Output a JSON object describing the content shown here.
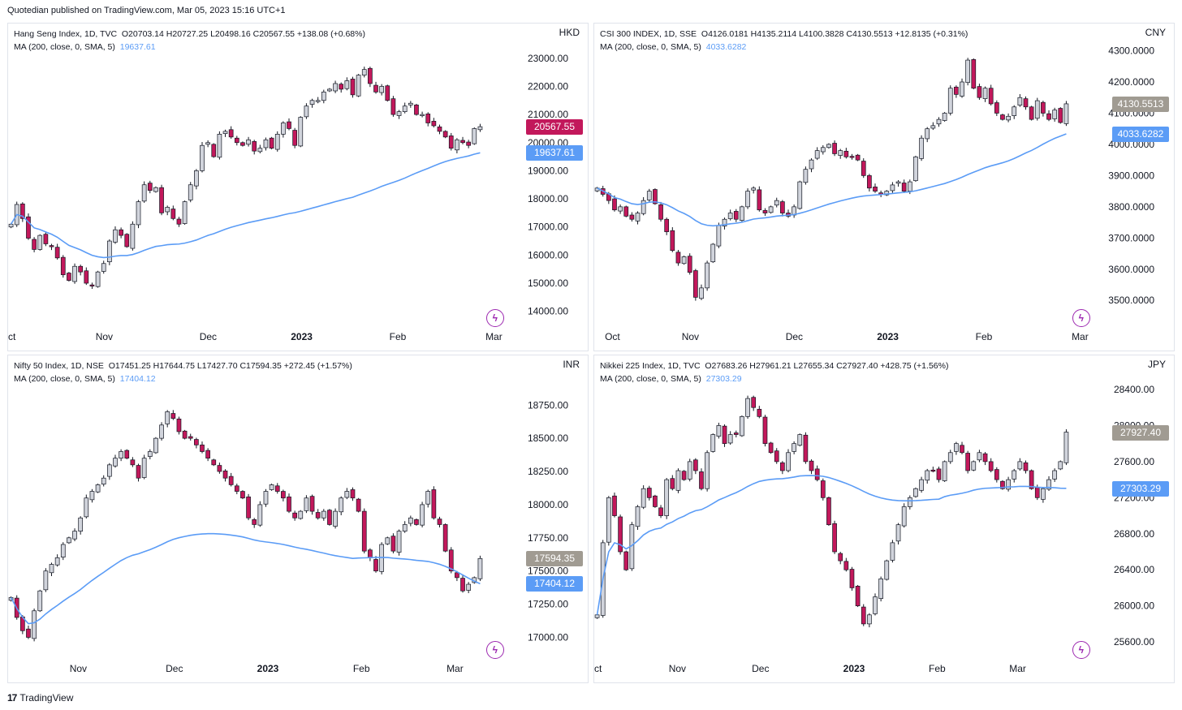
{
  "header": {
    "text": "Quotedian published on TradingView.com, Mar 05, 2023 15:16 UTC+1"
  },
  "footer": {
    "icon": "tradingview-logo-icon",
    "label": "TradingView"
  },
  "colors": {
    "up_body": "#d1d4dc",
    "down_body": "#c2185b",
    "ma_line": "#5b9cf6",
    "last_down": "#c2185b",
    "last_gray": "#a09b92",
    "ma_tag": "#5b9cf6"
  },
  "chart_data": [
    {
      "type": "candlestick",
      "title": "Hang Seng Index, 1D, TVC",
      "ohlc_text": "O20703.14  H20727.25  L20498.16  C20567.55  +138.08 (+0.68%)",
      "ma_label": "MA (200, close, 0, SMA, 5)",
      "ma_value": "19637.61",
      "currency": "HKD",
      "last_price": "20567.55",
      "last_color": "#c2185b",
      "ylim": [
        13500,
        23600
      ],
      "y_ticks": [
        "14000.00",
        "15000.00",
        "16000.00",
        "17000.00",
        "18000.00",
        "19000.00",
        "20000.00",
        "21000.00",
        "22000.00",
        "23000.00"
      ],
      "y_tick_values": [
        14000,
        15000,
        16000,
        17000,
        18000,
        19000,
        20000,
        21000,
        22000,
        23000
      ],
      "x_ticks": [
        {
          "label": "Oct",
          "pos": 0.0
        },
        {
          "label": "Nov",
          "pos": 0.185
        },
        {
          "label": "Dec",
          "pos": 0.385
        },
        {
          "label": "2023",
          "pos": 0.565
        },
        {
          "label": "Feb",
          "pos": 0.75
        },
        {
          "label": "Mar",
          "pos": 0.935
        }
      ],
      "closes": [
        17100,
        17800,
        17300,
        16600,
        16200,
        16700,
        16400,
        16300,
        15900,
        15300,
        15100,
        15600,
        15400,
        15000,
        14900,
        15400,
        15700,
        16500,
        16900,
        16700,
        16300,
        17100,
        17900,
        18500,
        18300,
        18400,
        17500,
        17700,
        17300,
        17100,
        17900,
        18500,
        19000,
        19900,
        20000,
        19500,
        20300,
        20400,
        20200,
        20000,
        19900,
        20100,
        19700,
        19800,
        20100,
        19800,
        20300,
        20700,
        20500,
        19900,
        20900,
        21300,
        21500,
        21500,
        21800,
        21900,
        22100,
        21900,
        22200,
        21700,
        22400,
        22600,
        22100,
        21800,
        22000,
        21500,
        21000,
        21100,
        21300,
        21400,
        21000,
        21000,
        20700,
        20600,
        20400,
        20200,
        19800,
        20100,
        20000,
        19900,
        20500,
        20567
      ]
    },
    {
      "type": "candlestick",
      "title": "CSI 300 INDEX, 1D, SSE",
      "ohlc_text": "O4126.0181  H4135.2114  L4100.3828  C4130.5513  +12.8135 (+0.31%)",
      "ma_label": "MA (200, close, 0, SMA, 5)",
      "ma_value": "4033.6282",
      "currency": "CNY",
      "last_price": "4130.5513",
      "last_color": "#a09b92",
      "ylim": [
        3420,
        4330
      ],
      "y_ticks": [
        "3500.0000",
        "3600.0000",
        "3700.0000",
        "3800.0000",
        "3900.0000",
        "4000.0000",
        "4100.0000",
        "4200.0000",
        "4300.0000"
      ],
      "y_tick_values": [
        3500,
        3600,
        3700,
        3800,
        3900,
        4000,
        4100,
        4200,
        4300
      ],
      "x_ticks": [
        {
          "label": "Oct",
          "pos": 0.035
        },
        {
          "label": "Nov",
          "pos": 0.185
        },
        {
          "label": "Dec",
          "pos": 0.385
        },
        {
          "label": "2023",
          "pos": 0.565
        },
        {
          "label": "Feb",
          "pos": 0.75
        },
        {
          "label": "Mar",
          "pos": 0.935
        }
      ],
      "closes": [
        3860,
        3840,
        3820,
        3790,
        3800,
        3770,
        3760,
        3780,
        3820,
        3850,
        3810,
        3760,
        3720,
        3660,
        3620,
        3640,
        3590,
        3510,
        3540,
        3620,
        3680,
        3740,
        3760,
        3780,
        3760,
        3800,
        3850,
        3860,
        3790,
        3780,
        3800,
        3820,
        3780,
        3770,
        3800,
        3880,
        3920,
        3950,
        3980,
        3990,
        4000,
        3970,
        3980,
        3960,
        3960,
        3950,
        3900,
        3860,
        3850,
        3840,
        3850,
        3870,
        3880,
        3850,
        3880,
        3960,
        4020,
        4050,
        4060,
        4080,
        4100,
        4180,
        4160,
        4200,
        4270,
        4180,
        4150,
        4180,
        4130,
        4100,
        4080,
        4090,
        4120,
        4150,
        4120,
        4080,
        4140,
        4100,
        4080,
        4110,
        4070,
        4130
      ]
    },
    {
      "type": "candlestick",
      "title": "Nifty 50 Index, 1D, NSE",
      "ohlc_text": "O17451.25  H17644.75  L17427.70  C17594.35  +272.45 (+1.57%)",
      "ma_label": "MA (200, close, 0, SMA, 5)",
      "ma_value": "17404.12",
      "currency": "INR",
      "last_price": "17594.35",
      "last_color": "#a09b92",
      "ylim": [
        16850,
        18990
      ],
      "y_ticks": [
        "17000.00",
        "17250.00",
        "17500.00",
        "17750.00",
        "18000.00",
        "18250.00",
        "18500.00",
        "18750.00"
      ],
      "y_tick_values": [
        17000,
        17250,
        17500,
        17750,
        18000,
        18250,
        18500,
        18750
      ],
      "x_ticks": [
        {
          "label": "Nov",
          "pos": 0.135
        },
        {
          "label": "Dec",
          "pos": 0.32
        },
        {
          "label": "2023",
          "pos": 0.5
        },
        {
          "label": "Feb",
          "pos": 0.68
        },
        {
          "label": "Mar",
          "pos": 0.86
        }
      ],
      "closes": [
        17300,
        17150,
        17050,
        17000,
        17200,
        17350,
        17500,
        17550,
        17600,
        17700,
        17750,
        17800,
        17900,
        18050,
        18100,
        18150,
        18200,
        18300,
        18350,
        18400,
        18350,
        18300,
        18200,
        18350,
        18400,
        18500,
        18600,
        18700,
        18650,
        18550,
        18500,
        18500,
        18450,
        18400,
        18350,
        18300,
        18250,
        18200,
        18150,
        18100,
        18050,
        17900,
        17850,
        18000,
        18100,
        18150,
        18100,
        18050,
        17950,
        17900,
        17950,
        18050,
        17950,
        17900,
        17950,
        17850,
        17950,
        18050,
        18100,
        18050,
        17950,
        17650,
        17600,
        17500,
        17700,
        17750,
        17650,
        17800,
        17850,
        17900,
        17850,
        18000,
        18100,
        17900,
        17850,
        17650,
        17500,
        17450,
        17350,
        17400,
        17450,
        17594
      ]
    },
    {
      "type": "candlestick",
      "title": "Nikkei 225 Index, 1D, TVC",
      "ohlc_text": "O27683.26  H27961.21  L27655.34  C27927.40  +428.75 (+1.56%)",
      "ma_label": "MA (200, close, 0, SMA, 5)",
      "ma_value": "27303.29",
      "currency": "JPY",
      "last_price": "27927.40",
      "last_color": "#a09b92",
      "ylim": [
        25430,
        28580
      ],
      "y_ticks": [
        "25600.00",
        "26000.00",
        "26400.00",
        "26800.00",
        "27200.00",
        "27600.00",
        "28000.00",
        "28400.00"
      ],
      "y_tick_values": [
        25600,
        26000,
        26400,
        26800,
        27200,
        27600,
        28000,
        28400
      ],
      "x_ticks": [
        {
          "label": "Oct",
          "pos": 0.0
        },
        {
          "label": "Nov",
          "pos": 0.16
        },
        {
          "label": "Dec",
          "pos": 0.32
        },
        {
          "label": "2023",
          "pos": 0.5
        },
        {
          "label": "Feb",
          "pos": 0.66
        },
        {
          "label": "Mar",
          "pos": 0.815
        }
      ],
      "closes": [
        25900,
        26700,
        27200,
        27000,
        26600,
        26400,
        26900,
        27100,
        27300,
        27200,
        27100,
        27000,
        27400,
        27300,
        27500,
        27400,
        27600,
        27500,
        27300,
        27700,
        27900,
        28000,
        27800,
        27900,
        27900,
        28100,
        28300,
        28200,
        28100,
        27800,
        27700,
        27600,
        27500,
        27700,
        27800,
        27900,
        27600,
        27500,
        27400,
        27200,
        26900,
        26600,
        26500,
        26400,
        26200,
        26000,
        25800,
        25900,
        26100,
        26300,
        26500,
        26700,
        26900,
        27100,
        27200,
        27300,
        27400,
        27500,
        27500,
        27400,
        27600,
        27700,
        27800,
        27700,
        27500,
        27600,
        27700,
        27600,
        27500,
        27400,
        27300,
        27400,
        27500,
        27600,
        27500,
        27300,
        27200,
        27300,
        27400,
        27500,
        27600,
        27927
      ]
    }
  ]
}
